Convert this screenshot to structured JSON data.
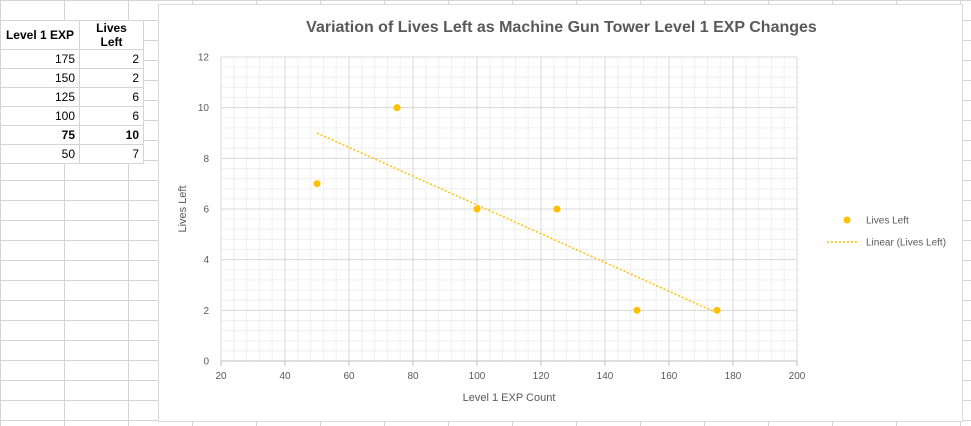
{
  "table": {
    "headers": [
      "Level 1 EXP",
      "Lives Left"
    ],
    "rows": [
      [
        "175",
        "2"
      ],
      [
        "150",
        "2"
      ],
      [
        "125",
        "6"
      ],
      [
        "100",
        "6"
      ],
      [
        "75",
        "10"
      ],
      [
        "50",
        "7"
      ]
    ]
  },
  "chart_data": {
    "type": "scatter",
    "title": "Variation of Lives Left as Machine Gun Tower Level 1 EXP Changes",
    "xlabel": "Level 1 EXP Count",
    "ylabel": "Lives Left",
    "xlim": [
      20,
      200
    ],
    "ylim": [
      0,
      12
    ],
    "x_ticks": [
      20,
      40,
      60,
      80,
      100,
      120,
      140,
      160,
      180,
      200
    ],
    "y_ticks": [
      0,
      2,
      4,
      6,
      8,
      10,
      12
    ],
    "grid": true,
    "legend_position": "right",
    "series": [
      {
        "name": "Lives Left",
        "color": "#FFC000",
        "x": [
          175,
          150,
          125,
          100,
          75,
          50
        ],
        "y": [
          2,
          2,
          6,
          6,
          10,
          7
        ]
      }
    ],
    "trendline": {
      "name": "Linear (Lives Left)",
      "color": "#FFC000",
      "style": "dotted",
      "x": [
        50,
        175
      ],
      "y": [
        9.0,
        1.9
      ]
    }
  }
}
